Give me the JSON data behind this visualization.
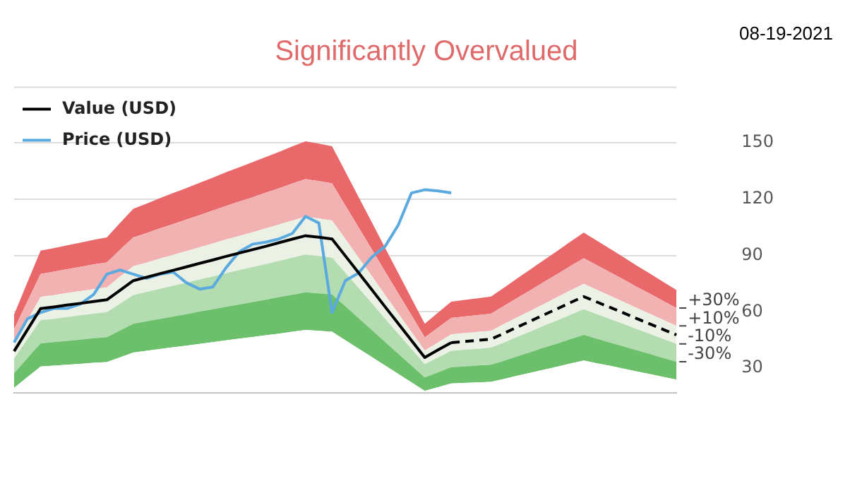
{
  "chart_data": {
    "type": "area",
    "title": "Significantly Overvalued",
    "annotations": [
      "08-19-2021"
    ],
    "categories": [
      null,
      null,
      null,
      null,
      null,
      null,
      null,
      null,
      null,
      null,
      null,
      null,
      null,
      null,
      null,
      null,
      null,
      null,
      null,
      null,
      null,
      null,
      null,
      null,
      null,
      null,
      null,
      null,
      null,
      null,
      null,
      null,
      null,
      null,
      null,
      null,
      null,
      null,
      null,
      null,
      null,
      null,
      null,
      null,
      null,
      null,
      null,
      null,
      null,
      null,
      null
    ],
    "ylim": [
      17,
      180
    ],
    "yticks": [
      30,
      60,
      90,
      120,
      150
    ],
    "grid": "y",
    "tick_labels": "y",
    "legend": "top left",
    "marker": "none",
    "series": [
      {
        "color": "#ffffff",
        "values": [
          19.5,
          25.2,
          30.9,
          31.3,
          31.8,
          32.3,
          32.8,
          33.2,
          35.8,
          38.3,
          39.2,
          40.2,
          41.1,
          42,
          42.9,
          43.8,
          44.8,
          45.7,
          46.6,
          47.5,
          48.4,
          49.4,
          50.3,
          49.9,
          49.4,
          44.9,
          40.4,
          35.9,
          31.4,
          26.9,
          22.4,
          17.9,
          19.9,
          21.8,
          22.1,
          22.4,
          22.7,
          24.3,
          26,
          27.6,
          29.2,
          30.8,
          32.5,
          34.1,
          32.6,
          31.2,
          29.7,
          28.2,
          26.8,
          25.3,
          23.9
        ]
      },
      {
        "name": "-30%",
        "color": "#6cc06c",
        "values": [
          27.3,
          35.3,
          43.2,
          43.8,
          44.5,
          45.2,
          45.9,
          46.5,
          50.1,
          53.6,
          54.9,
          56.2,
          57.5,
          58.7,
          60.1,
          61.3,
          62.7,
          63.9,
          65.2,
          66.4,
          67.8,
          69.1,
          70.4,
          69.8,
          69.2,
          62.9,
          56.6,
          50.3,
          43.9,
          37.6,
          31.3,
          25,
          27.8,
          30.5,
          30.9,
          31.4,
          31.8,
          34,
          36.3,
          38.6,
          40.9,
          43.1,
          45.4,
          47.7,
          45.6,
          43.6,
          41.6,
          39.5,
          37.5,
          35.4,
          33.4
        ]
      },
      {
        "name": "-10%",
        "color": "#b3ddb0",
        "values": [
          35.1,
          45.4,
          55.5,
          56.3,
          57.2,
          58.1,
          59,
          59.8,
          64.4,
          68.9,
          70.6,
          72.3,
          73.9,
          75.5,
          77.2,
          78.8,
          80.6,
          82.2,
          83.8,
          85.4,
          87.1,
          88.8,
          90.5,
          89.7,
          88.9,
          80.8,
          72.7,
          64.6,
          56.4,
          48.3,
          40.2,
          32.1,
          35.7,
          39.2,
          39.8,
          40.3,
          40.9,
          43.7,
          46.7,
          49.6,
          52.6,
          55.4,
          58.4,
          61.3,
          58.7,
          56.1,
          53.5,
          50.8,
          48.2,
          45.5,
          42.9
        ]
      },
      {
        "name": "+10%",
        "color": "#ecf1e6",
        "values": [
          42.9,
          55.4,
          67.9,
          68.9,
          70,
          71,
          72.1,
          73,
          78.7,
          84.3,
          86.2,
          88.3,
          90.3,
          92.3,
          94.4,
          96.4,
          98.5,
          100.4,
          102.4,
          104.4,
          106.5,
          108.6,
          110.6,
          109.7,
          108.7,
          98.8,
          88.9,
          79,
          69,
          59.1,
          49.2,
          39.3,
          43.7,
          48,
          48.6,
          49.3,
          49.9,
          53.5,
          57.1,
          60.6,
          64.2,
          67.8,
          71.4,
          74.9,
          71.7,
          68.5,
          65.3,
          62,
          58.9,
          55.7,
          52.5
        ]
      },
      {
        "name": "+30%",
        "color": "#f2b2b2",
        "values": [
          50.7,
          65.5,
          80.2,
          81.4,
          82.7,
          83.9,
          85.2,
          86.3,
          93,
          99.6,
          101.9,
          104.4,
          106.7,
          109.1,
          111.5,
          113.9,
          116.4,
          118.7,
          121,
          123.4,
          125.8,
          128.3,
          130.7,
          129.6,
          128.4,
          116.7,
          105,
          93.3,
          81.5,
          69.8,
          58.1,
          46.4,
          51.6,
          56.7,
          57.5,
          58.2,
          59,
          63.2,
          67.5,
          71.6,
          75.9,
          80.1,
          84.4,
          88.5,
          84.8,
          81,
          77.2,
          73.3,
          69.6,
          65.8,
          62
        ]
      },
      {
        "color": "#e9696b",
        "values": [
          58.5,
          75.6,
          92.6,
          93.9,
          95.4,
          96.8,
          98.3,
          99.6,
          107.3,
          114.9,
          117.6,
          120.5,
          123.2,
          125.9,
          128.7,
          131.4,
          134.3,
          137,
          139.7,
          142.4,
          145.2,
          148.1,
          150.8,
          149.6,
          148.2,
          134.7,
          121.2,
          107.7,
          94.1,
          80.6,
          67.1,
          53.6,
          59.6,
          65.4,
          66.3,
          67.2,
          68.1,
          72.9,
          77.9,
          82.7,
          87.6,
          92.4,
          97.4,
          102.2,
          97.8,
          93.5,
          89.1,
          84.6,
          80.3,
          75.9,
          71.6
        ]
      },
      {
        "type": "line",
        "name": "Value (USD)",
        "color": "#000000",
        "line_style": "solid",
        "values": [
          39,
          50.4,
          61.7,
          62.6,
          63.6,
          64.5,
          65.5,
          66.4,
          71.5,
          76.6,
          78.4,
          80.3,
          82.1,
          83.9,
          85.8,
          87.6,
          89.5,
          91.3,
          93.1,
          94.9,
          96.8,
          98.7,
          100.5,
          99.7,
          98.8,
          89.8,
          80.8,
          71.8,
          62.7,
          53.7,
          44.7,
          35.7,
          39.7,
          43.6,
          null,
          null,
          null,
          null,
          null,
          null,
          null,
          null,
          null,
          null,
          null,
          null,
          null,
          null,
          null,
          null,
          null
        ]
      },
      {
        "type": "line",
        "color": "#000000",
        "line_style": "dashed",
        "values": [
          null,
          null,
          null,
          null,
          null,
          null,
          null,
          null,
          null,
          null,
          null,
          null,
          null,
          null,
          null,
          null,
          null,
          null,
          null,
          null,
          null,
          null,
          null,
          null,
          null,
          null,
          null,
          null,
          null,
          null,
          null,
          null,
          null,
          43.6,
          44.2,
          44.8,
          45.4,
          48.6,
          51.9,
          55.1,
          58.4,
          61.6,
          64.9,
          68.1,
          65.2,
          62.3,
          59.4,
          56.4,
          53.5,
          50.6,
          47.7
        ]
      },
      {
        "type": "line",
        "name": "Price (USD)",
        "color": "#5aaae0",
        "line_style": "solid",
        "values": [
          43.7,
          56.2,
          59.6,
          61.8,
          61.8,
          64.1,
          69.2,
          80,
          82.3,
          80,
          77.8,
          80,
          81.2,
          75.5,
          72.1,
          73.2,
          83.5,
          92,
          96,
          97.1,
          98.8,
          101.7,
          110.8,
          107.3,
          59.6,
          76.6,
          80.6,
          89.1,
          94.8,
          106.2,
          123.3,
          125,
          124.4,
          123.3,
          null,
          null,
          null,
          null,
          null,
          null,
          null,
          null,
          null,
          null,
          null,
          null,
          null,
          null,
          null,
          null,
          null
        ]
      }
    ]
  }
}
